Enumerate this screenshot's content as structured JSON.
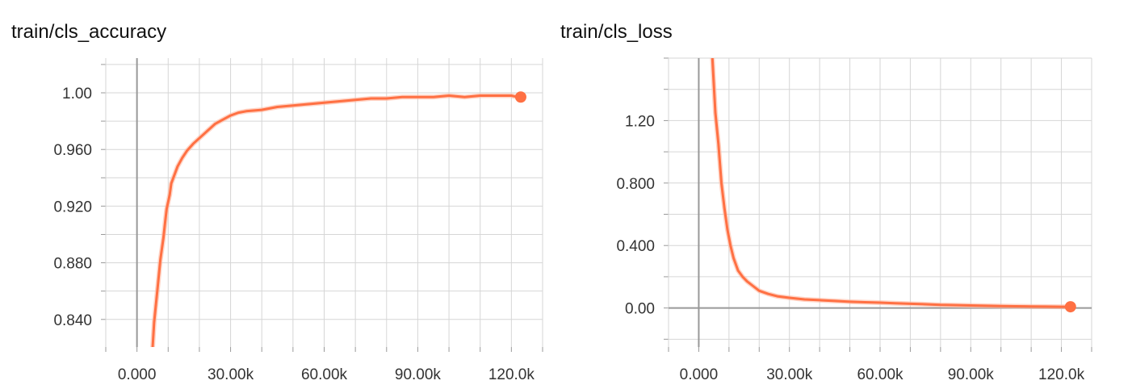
{
  "colors": {
    "series": "#ff7043",
    "grid": "#d6d6d6",
    "zero_axis": "#999999",
    "text": "#333333"
  },
  "chart_data": [
    {
      "type": "line",
      "title": "train/cls_accuracy",
      "xlim": [
        -10000,
        130000
      ],
      "ylim": [
        0.8205,
        1.0245
      ],
      "x_ticks": [
        0,
        30000,
        60000,
        90000,
        120000
      ],
      "x_tick_labels": [
        "0.000",
        "30.00k",
        "60.00k",
        "90.00k",
        "120.0k"
      ],
      "y_ticks": [
        0.84,
        0.88,
        0.92,
        0.96,
        1.0
      ],
      "y_tick_labels": [
        "0.840",
        "0.880",
        "0.920",
        "0.960",
        "1.00"
      ],
      "series": [
        {
          "x": [
            5000,
            5500,
            6500,
            7500,
            8500,
            9000,
            9500,
            10500,
            11000,
            12000,
            13000,
            14500,
            16000,
            18000,
            20000,
            22500,
            25000,
            27500,
            30000,
            32500,
            35000,
            40000,
            45000,
            50000,
            55000,
            60000,
            65000,
            70000,
            75000,
            80000,
            85000,
            90000,
            95000,
            100000,
            105000,
            110000,
            115000,
            120000,
            122000,
            123000
          ],
          "y": [
            0.82,
            0.838,
            0.86,
            0.882,
            0.898,
            0.908,
            0.918,
            0.928,
            0.936,
            0.942,
            0.948,
            0.954,
            0.959,
            0.964,
            0.968,
            0.973,
            0.978,
            0.981,
            0.984,
            0.986,
            0.987,
            0.988,
            0.99,
            0.991,
            0.992,
            0.993,
            0.994,
            0.995,
            0.996,
            0.996,
            0.997,
            0.997,
            0.997,
            0.998,
            0.997,
            0.998,
            0.998,
            0.998,
            0.997,
            0.997
          ]
        }
      ]
    },
    {
      "type": "line",
      "title": "train/cls_loss",
      "xlim": [
        -10000,
        130000
      ],
      "ylim": [
        -0.25,
        1.6
      ],
      "x_ticks": [
        0,
        30000,
        60000,
        90000,
        120000
      ],
      "x_tick_labels": [
        "0.000",
        "30.00k",
        "60.00k",
        "90.00k",
        "120.0k"
      ],
      "y_ticks": [
        0.0,
        0.4,
        0.8,
        1.2
      ],
      "y_tick_labels": [
        "0.00",
        "0.400",
        "0.800",
        "1.20"
      ],
      "series": [
        {
          "x": [
            4500,
            5500,
            6500,
            7500,
            8500,
            9500,
            10500,
            11500,
            13000,
            14500,
            16000,
            18000,
            20000,
            23000,
            26000,
            30000,
            35000,
            40000,
            45000,
            50000,
            55000,
            60000,
            65000,
            70000,
            75000,
            80000,
            85000,
            90000,
            95000,
            100000,
            105000,
            110000,
            115000,
            120000,
            123000
          ],
          "y": [
            1.6,
            1.25,
            1.05,
            0.8,
            0.64,
            0.5,
            0.4,
            0.32,
            0.24,
            0.2,
            0.17,
            0.14,
            0.11,
            0.09,
            0.075,
            0.065,
            0.055,
            0.05,
            0.045,
            0.04,
            0.037,
            0.034,
            0.03,
            0.027,
            0.024,
            0.02,
            0.018,
            0.016,
            0.014,
            0.012,
            0.011,
            0.01,
            0.009,
            0.008,
            0.008
          ]
        }
      ]
    }
  ]
}
